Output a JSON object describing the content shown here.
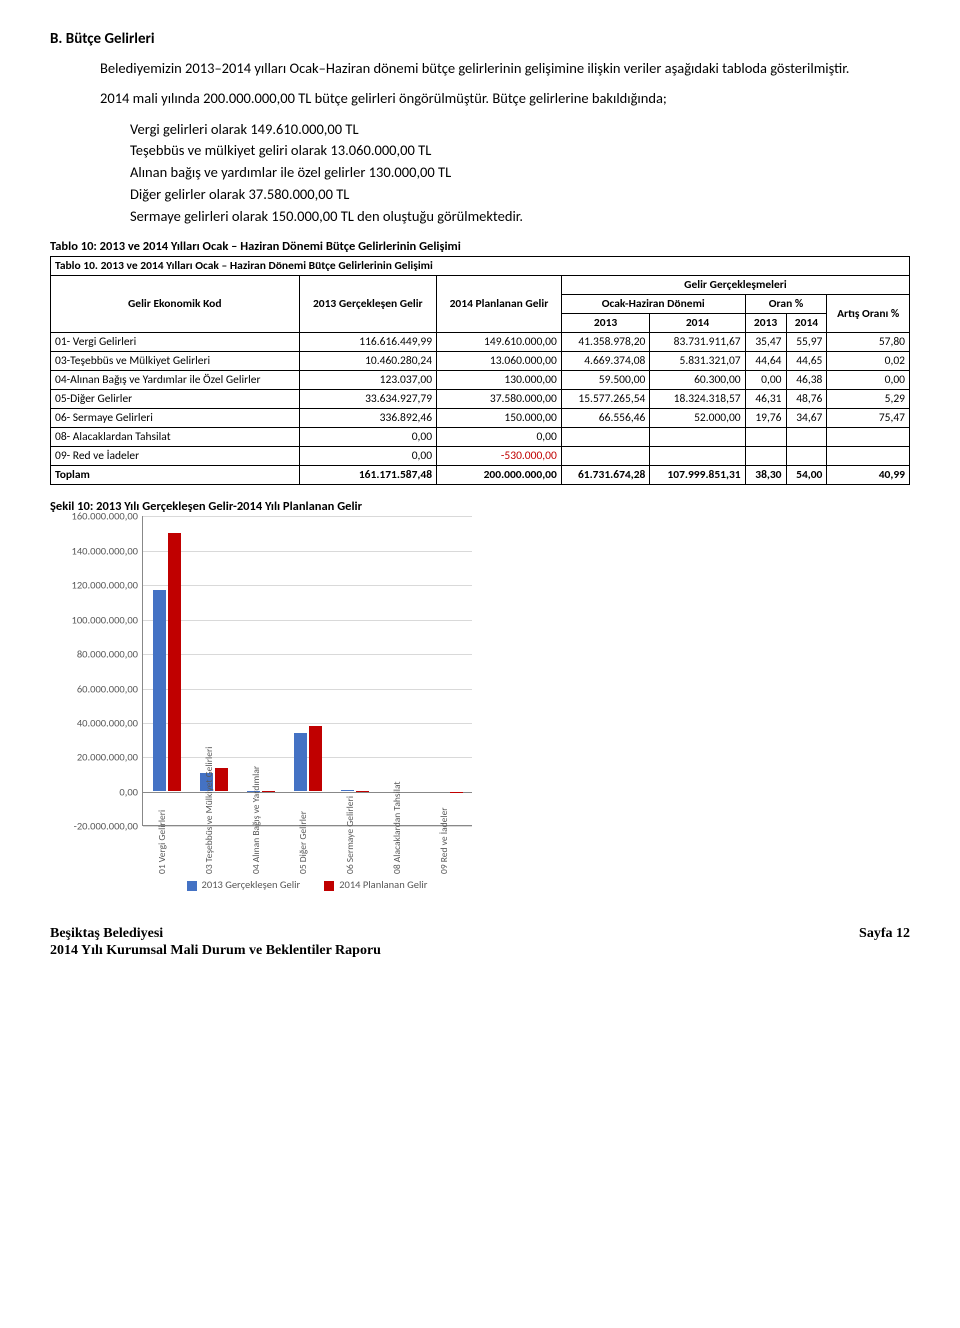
{
  "section": {
    "heading": "B.  Bütçe Gelirleri",
    "para1": "Belediyemizin 2013–2014 yılları Ocak–Haziran dönemi bütçe gelirlerinin gelişimine ilişkin veriler aşağıdaki tabloda gösterilmiştir.",
    "para2": "2014 mali yılında 200.000.000,00 TL bütçe gelirleri öngörülmüştür. Bütçe gelirlerine bakıldığında;",
    "lines": [
      "Vergi gelirleri olarak 149.610.000,00 TL",
      "Teşebbüs ve mülkiyet geliri olarak  13.060.000,00 TL",
      "Alınan bağış ve yardımlar ile özel gelirler  130.000,00 TL",
      "Diğer gelirler olarak  37.580.000,00 TL",
      "Sermaye gelirleri olarak  150.000,00 TL den oluştuğu görülmektedir."
    ]
  },
  "table": {
    "caption": "Tablo 10: 2013 ve 2014 Yılları Ocak – Haziran Dönemi Bütçe Gelirlerinin Gelişimi",
    "inner_caption": "Tablo 10. 2013 ve 2014 Yılları Ocak – Haziran Dönemi Bütçe Gelirlerinin Gelişimi",
    "head": {
      "col_ekod": "Gelir Ekonomik Kod",
      "col_2013g": "2013 Gerçekleşen Gelir",
      "col_2014p": "2014 Planlanan Gelir",
      "grp": "Gelir Gerçekleşmeleri",
      "grp_ocak": "Ocak-Haziran Dönemi",
      "grp_oran": "Oran %",
      "y2013": "2013",
      "y2014": "2014",
      "artis": "Artış Oranı %"
    },
    "rows": [
      {
        "name": "01- Vergi Gelirleri",
        "g2013": "116.616.449,99",
        "p2014": "149.610.000,00",
        "o2013": "41.358.978,20",
        "o2014": "83.731.911,67",
        "r2013": "35,47",
        "r2014": "55,97",
        "art": "57,80"
      },
      {
        "name": "03-Teşebbüs ve Mülkiyet Gelirleri",
        "g2013": "10.460.280,24",
        "p2014": "13.060.000,00",
        "o2013": "4.669.374,08",
        "o2014": "5.831.321,07",
        "r2013": "44,64",
        "r2014": "44,65",
        "art": "0,02"
      },
      {
        "name": "04-Alınan Bağış ve Yardımlar ile Özel Gelirler",
        "g2013": "123.037,00",
        "p2014": "130.000,00",
        "o2013": "59.500,00",
        "o2014": "60.300,00",
        "r2013": "0,00",
        "r2014": "46,38",
        "art": "0,00"
      },
      {
        "name": "05-Diğer Gelirler",
        "g2013": "33.634.927,79",
        "p2014": "37.580.000,00",
        "o2013": "15.577.265,54",
        "o2014": "18.324.318,57",
        "r2013": "46,31",
        "r2014": "48,76",
        "art": "5,29"
      },
      {
        "name": "06- Sermaye Gelirleri",
        "g2013": "336.892,46",
        "p2014": "150.000,00",
        "o2013": "66.556,46",
        "o2014": "52.000,00",
        "r2013": "19,76",
        "r2014": "34,67",
        "art": "75,47"
      },
      {
        "name": "08- Alacaklardan Tahsilat",
        "g2013": "0,00",
        "p2014": "0,00",
        "o2013": "",
        "o2014": "",
        "r2013": "",
        "r2014": "",
        "art": ""
      },
      {
        "name": "09- Red ve İadeler",
        "g2013": "0,00",
        "p2014": "-530.000,00",
        "o2013": "",
        "o2014": "",
        "r2013": "",
        "r2014": "",
        "art": "",
        "neg": true
      },
      {
        "name": "Toplam",
        "g2013": "161.171.587,48",
        "p2014": "200.000.000,00",
        "o2013": "61.731.674,28",
        "o2014": "107.999.851,31",
        "r2013": "38,30",
        "r2014": "54,00",
        "art": "40,99",
        "bold": true
      }
    ]
  },
  "chart": {
    "caption": "Şekil 10: 2013 Yılı Gerçekleşen Gelir-2014 Yılı Planlanan Gelir",
    "type": "bar",
    "ylim": [
      -20000000,
      160000000
    ],
    "ytick_step": 20000000,
    "y_labels": [
      "160.000.000,00",
      "140.000.000,00",
      "120.000.000,00",
      "100.000.000,00",
      "80.000.000,00",
      "60.000.000,00",
      "40.000.000,00",
      "20.000.000,00",
      "0,00",
      "-20.000.000,00"
    ],
    "categories": [
      "01 Vergi Gelirleri",
      "03 Teşebbüs ve Mülkiyet Gelirleri",
      "04 Alınan Bağış ve Yardımlar",
      "05 Diğer Gelirler",
      "06 Sermaye Gelirleri",
      "08 Alacaklardan Tahsilat",
      "09 Red ve İadeler"
    ],
    "series": [
      {
        "name": "2013 Gerçekleşen Gelir",
        "color": "#4472c4",
        "values": [
          116616450,
          10460280,
          123037,
          33634928,
          336892,
          0,
          0
        ]
      },
      {
        "name": "2014 Planlanan Gelir",
        "color": "#c00000",
        "values": [
          149610000,
          13060000,
          130000,
          37580000,
          150000,
          0,
          -530000
        ]
      }
    ],
    "grid_color": "#d9d9d9",
    "background": "#ffffff",
    "label_fontsize": 10.5
  },
  "footer": {
    "left1": "Beşiktaş Belediyesi",
    "left2": "2014 Yılı Kurumsal Mali Durum ve Beklentiler Raporu",
    "right": "Sayfa 12"
  }
}
